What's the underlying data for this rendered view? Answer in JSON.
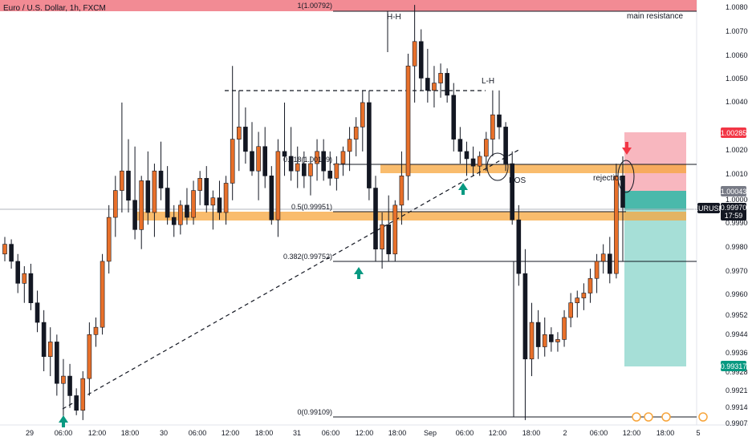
{
  "chart_data": {
    "type": "candlestick",
    "title": "Euro / U.S. Dollar, 1h, FXCM",
    "ylim": [
      0.9908,
      1.0082
    ],
    "y_ticks": [
      "1.00800",
      "1.00700",
      "1.00600",
      "1.00500",
      "1.00400",
      "1.00200",
      "1.00100",
      "1.00000",
      "0.99900",
      "0.99800",
      "0.99700",
      "0.99600",
      "0.99520",
      "0.99440",
      "0.99360",
      "0.99280",
      "0.99210",
      "0.99140",
      "0.99075"
    ],
    "x_ticks": [
      "29",
      "06:00",
      "12:00",
      "18:00",
      "30",
      "06:00",
      "12:00",
      "18:00",
      "31",
      "06:00",
      "12:00",
      "18:00",
      "Sep",
      "06:00",
      "12:00",
      "18:00",
      "2",
      "06:00",
      "12:00",
      "18:00",
      "5"
    ],
    "price_tags": [
      {
        "label": "1.00285",
        "value": 1.00285,
        "color": "#f23645"
      },
      {
        "label": "1.00043",
        "value": 1.00043,
        "color": "#787b86"
      },
      {
        "label": "EURUSD",
        "value": 0.9997,
        "color": "#131722"
      },
      {
        "label": "0.99970",
        "value": 0.9997,
        "color": "#131722"
      },
      {
        "label": "17:59",
        "value": 0.9997,
        "color": "#131722"
      },
      {
        "label": "0.99317",
        "value": 0.99317,
        "color": "#089981"
      }
    ],
    "fib_levels": [
      {
        "label": "1(1.00792)",
        "value": 1.00792
      },
      {
        "label": "0.618(1.00149)",
        "value": 1.00149
      },
      {
        "label": "0.5(0.99951)",
        "value": 0.99951
      },
      {
        "label": "0.382(0.99752)",
        "value": 0.99752
      },
      {
        "label": "0(0.99109)",
        "value": 0.99109
      }
    ],
    "annotations": [
      "H-H",
      "L-H",
      "main resistance",
      "BOS",
      "rejection"
    ],
    "candles": [
      [
        0.9978,
        0.9985,
        0.9975,
        0.9982
      ],
      [
        0.9982,
        0.9984,
        0.9972,
        0.9975
      ],
      [
        0.9975,
        0.9978,
        0.9962,
        0.9966
      ],
      [
        0.9966,
        0.9973,
        0.9958,
        0.997
      ],
      [
        0.997,
        0.9974,
        0.9955,
        0.9958
      ],
      [
        0.9958,
        0.9963,
        0.9946,
        0.995
      ],
      [
        0.995,
        0.9955,
        0.993,
        0.9936
      ],
      [
        0.9936,
        0.9948,
        0.9928,
        0.9942
      ],
      [
        0.9942,
        0.9945,
        0.992,
        0.9925
      ],
      [
        0.9925,
        0.9935,
        0.991,
        0.9928
      ],
      [
        0.9928,
        0.9933,
        0.9915,
        0.992
      ],
      [
        0.992,
        0.9923,
        0.9912,
        0.9914
      ],
      [
        0.9914,
        0.993,
        0.991,
        0.9927
      ],
      [
        0.9927,
        0.995,
        0.992,
        0.9945
      ],
      [
        0.9945,
        0.9952,
        0.994,
        0.9948
      ],
      [
        0.9948,
        0.9978,
        0.9945,
        0.9975
      ],
      [
        0.9975,
        0.9998,
        0.997,
        0.9993
      ],
      [
        0.9993,
        1.001,
        0.9985,
        1.0004
      ],
      [
        1.0004,
        1.004,
        0.9995,
        1.0012
      ],
      [
        1.0012,
        1.0025,
        0.9995,
        1.0
      ],
      [
        1.0,
        1.0022,
        0.9984,
        0.9988
      ],
      [
        0.9988,
        1.001,
        0.998,
        1.0008
      ],
      [
        1.0008,
        1.002,
        0.999,
        0.9995
      ],
      [
        0.9995,
        1.0015,
        0.9985,
        1.0012
      ],
      [
        1.0012,
        1.0024,
        1.0,
        1.0005
      ],
      [
        1.0005,
        1.0014,
        0.999,
        0.9993
      ],
      [
        0.9993,
        0.9998,
        0.9985,
        0.999
      ],
      [
        0.999,
        1.0,
        0.9986,
        0.9998
      ],
      [
        0.9998,
        1.0005,
        0.999,
        0.9993
      ],
      [
        0.9993,
        1.0008,
        0.999,
        1.0004
      ],
      [
        1.0004,
        1.0012,
        0.9998,
        1.0009
      ],
      [
        1.0009,
        1.0014,
        0.9995,
        0.9998
      ],
      [
        0.9998,
        1.0004,
        0.9988,
        1.0001
      ],
      [
        1.0001,
        1.0008,
        0.9992,
        0.9995
      ],
      [
        0.9995,
        1.001,
        0.999,
        1.0007
      ],
      [
        1.0007,
        1.0055,
        1.0,
        1.0025
      ],
      [
        1.0025,
        1.0045,
        1.0012,
        1.003
      ],
      [
        1.003,
        1.0038,
        1.0015,
        1.002
      ],
      [
        1.002,
        1.0032,
        1.001,
        1.0012
      ],
      [
        1.0012,
        1.0028,
        1.0,
        1.0022
      ],
      [
        1.0022,
        1.003,
        1.0005,
        1.001
      ],
      [
        1.001,
        1.0014,
        0.999,
        0.9992
      ],
      [
        0.9992,
        1.0025,
        0.9985,
        1.002
      ],
      [
        1.002,
        1.004,
        1.001,
        1.0018
      ],
      [
        1.0018,
        1.003,
        1.0008,
        1.0012
      ],
      [
        1.0012,
        1.0022,
        1.0005,
        1.0015
      ],
      [
        1.0015,
        1.002,
        1.0005,
        1.001
      ],
      [
        1.001,
        1.0018,
        1.0002,
        1.0015
      ],
      [
        1.0015,
        1.0025,
        1.0008,
        1.002
      ],
      [
        1.002,
        1.0025,
        1.0008,
        1.0012
      ],
      [
        1.0012,
        1.002,
        1.0006,
        1.0009
      ],
      [
        1.0009,
        1.0018,
        1.0004,
        1.0015
      ],
      [
        1.0015,
        1.0022,
        1.001,
        1.002
      ],
      [
        1.002,
        1.003,
        1.0012,
        1.0025
      ],
      [
        1.0025,
        1.0034,
        1.0018,
        1.003
      ],
      [
        1.003,
        1.0045,
        1.002,
        1.004
      ],
      [
        1.004,
        1.0045,
        1.0,
        1.0005
      ],
      [
        1.0005,
        1.001,
        0.9975,
        0.998
      ],
      [
        0.998,
        0.9995,
        0.9972,
        0.999
      ],
      [
        0.999,
        1.0002,
        0.9975,
        0.9978
      ],
      [
        0.9978,
        1.0,
        0.9975,
        0.9998
      ],
      [
        0.9998,
        1.002,
        0.999,
        1.001
      ],
      [
        1.001,
        1.006,
        1.0,
        1.0055
      ],
      [
        1.0055,
        1.008,
        1.004,
        1.0065
      ],
      [
        1.0065,
        1.007,
        1.0045,
        1.005
      ],
      [
        1.005,
        1.0062,
        1.004,
        1.0045
      ],
      [
        1.0045,
        1.0055,
        1.0038,
        1.0048
      ],
      [
        1.0048,
        1.0056,
        1.0042,
        1.0052
      ],
      [
        1.0052,
        1.0054,
        1.004,
        1.0043
      ],
      [
        1.0043,
        1.0048,
        1.002,
        1.0025
      ],
      [
        1.0025,
        1.003,
        1.0015,
        1.002
      ],
      [
        1.002,
        1.0024,
        1.001,
        1.0017
      ],
      [
        1.0017,
        1.0022,
        1.001,
        1.0014
      ],
      [
        1.0014,
        1.002,
        1.001,
        1.0018
      ],
      [
        1.0018,
        1.0028,
        1.0012,
        1.0025
      ],
      [
        1.0025,
        1.0045,
        1.0018,
        1.0035
      ],
      [
        1.0035,
        1.0045,
        1.0025,
        1.003
      ],
      [
        1.003,
        1.0032,
        1.0012,
        1.0015
      ],
      [
        1.0015,
        1.002,
        0.999,
        0.9992
      ],
      [
        0.9992,
        0.9998,
        0.9965,
        0.997
      ],
      [
        0.997,
        0.998,
        0.991,
        0.9935
      ],
      [
        0.9935,
        0.9958,
        0.9928,
        0.995
      ],
      [
        0.995,
        0.9955,
        0.9935,
        0.994
      ],
      [
        0.994,
        0.9952,
        0.9936,
        0.9945
      ],
      [
        0.9945,
        0.9948,
        0.9938,
        0.9942
      ],
      [
        0.9942,
        0.9946,
        0.9938,
        0.9943
      ],
      [
        0.9943,
        0.9955,
        0.994,
        0.9952
      ],
      [
        0.9952,
        0.9962,
        0.9948,
        0.9958
      ],
      [
        0.9958,
        0.9963,
        0.9952,
        0.996
      ],
      [
        0.996,
        0.9966,
        0.9955,
        0.9962
      ],
      [
        0.9962,
        0.9972,
        0.9958,
        0.9968
      ],
      [
        0.9968,
        0.9978,
        0.9962,
        0.9975
      ],
      [
        0.9975,
        0.9982,
        0.997,
        0.9978
      ],
      [
        0.9978,
        0.9985,
        0.9966,
        0.997
      ],
      [
        0.997,
        1.0015,
        0.9968,
        1.001
      ],
      [
        1.001,
        1.0018,
        0.9975,
        0.9997
      ]
    ]
  }
}
